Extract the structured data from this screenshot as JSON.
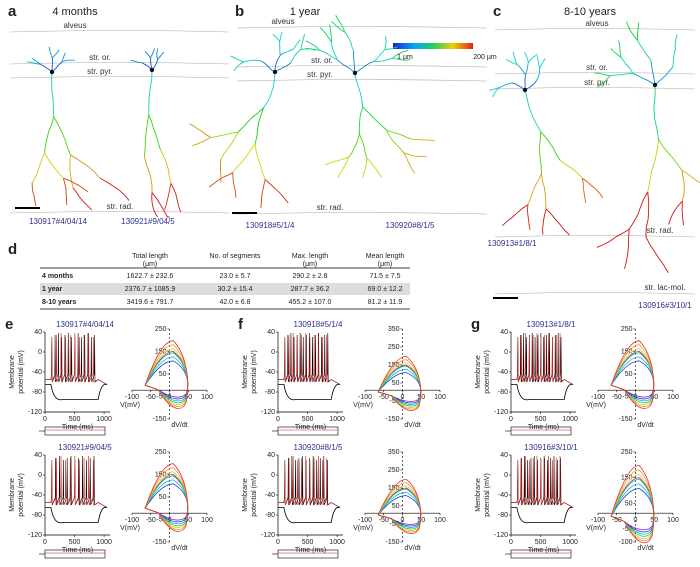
{
  "figure": {
    "morphology": [
      {
        "label": "a",
        "title": "4 months",
        "layers": [
          "alveus",
          "str. or.",
          "str. pyr.",
          "str. rad."
        ],
        "cells": [
          "130917#4/04/14",
          "130921#9/04/5"
        ]
      },
      {
        "label": "b",
        "title": "1 year",
        "layers": [
          "alveus",
          "str. or.",
          "str. pyr.",
          "str. rad."
        ],
        "cells": [
          "130918#5/1/4",
          "130920#8/1/5"
        ],
        "colorbar": [
          "1 µm",
          "200 µm"
        ]
      },
      {
        "label": "c",
        "title": "8-10 years",
        "layers": [
          "alveus",
          "str. or.",
          "str. pyr.",
          "str. rad.",
          "str. lac-mol."
        ],
        "cells": [
          "130913#1/8/1",
          "130916#3/10/1"
        ]
      }
    ],
    "table": {
      "label": "d",
      "headers": [
        [
          "Total length",
          "(μm)"
        ],
        [
          "No. of segments"
        ],
        [
          "Max. length",
          "(μm)"
        ],
        [
          "Mean length",
          "(μm)"
        ]
      ],
      "rows": [
        [
          "4 months",
          "1622.7 ± 232.6",
          "23.0 ± 5.7",
          "290.2 ± 2.8",
          "71.5 ± 7.5"
        ],
        [
          "1 year",
          "2376.7 ± 1085.9",
          "30.2 ± 15.4",
          "287.7 ± 36.2",
          "69.0 ± 12.2"
        ],
        [
          "8-10 years",
          "3419.6 ± 791.7",
          "42.0 ± 6.8",
          "455.2 ± 107.0",
          "81.2 ± 11.9"
        ]
      ]
    },
    "ephys": {
      "voltage_axis_label": [
        "Membrane",
        "potential (mV)"
      ],
      "time_axis_label": "Time (ms)",
      "phase_x_label": "V(mV)",
      "phase_y_label": "dV/dt",
      "voltage_xlim": [
        0,
        1100
      ],
      "voltage_xticks": [
        0,
        500,
        1000
      ],
      "voltage_ylim": [
        -120,
        40
      ],
      "voltage_yticks": [
        40,
        0,
        -40,
        -80,
        -120
      ],
      "phase_xlim": [
        -100,
        100
      ],
      "phase_xticks": [
        -100,
        -50,
        0,
        50,
        100
      ],
      "panels": [
        {
          "label": "e",
          "cells": [
            {
              "id": "130917#4/04/14",
              "phase_ylim": [
                -150,
                250
              ],
              "phase_yticks": [
                250,
                150,
                50,
                -50,
                -150
              ]
            },
            {
              "id": "130921#9/04/5",
              "phase_ylim": [
                -150,
                250
              ],
              "phase_yticks": [
                250,
                150,
                50,
                -50,
                -150
              ]
            }
          ]
        },
        {
          "label": "f",
          "cells": [
            {
              "id": "130918#5/1/4",
              "phase_ylim": [
                -150,
                350
              ],
              "phase_yticks": [
                350,
                250,
                150,
                50,
                -50,
                -150
              ]
            },
            {
              "id": "130920#8/1/5",
              "phase_ylim": [
                -150,
                350
              ],
              "phase_yticks": [
                350,
                250,
                150,
                50,
                -50,
                -150
              ]
            }
          ]
        },
        {
          "label": "g",
          "cells": [
            {
              "id": "130913#1/8/1",
              "phase_ylim": [
                -150,
                250
              ],
              "phase_yticks": [
                250,
                150,
                50,
                -50,
                -150
              ]
            },
            {
              "id": "130916#3/10/1",
              "phase_ylim": [
                -100,
                250
              ],
              "phase_yticks": [
                250,
                150,
                50,
                -50,
                -100
              ]
            }
          ]
        }
      ]
    }
  }
}
